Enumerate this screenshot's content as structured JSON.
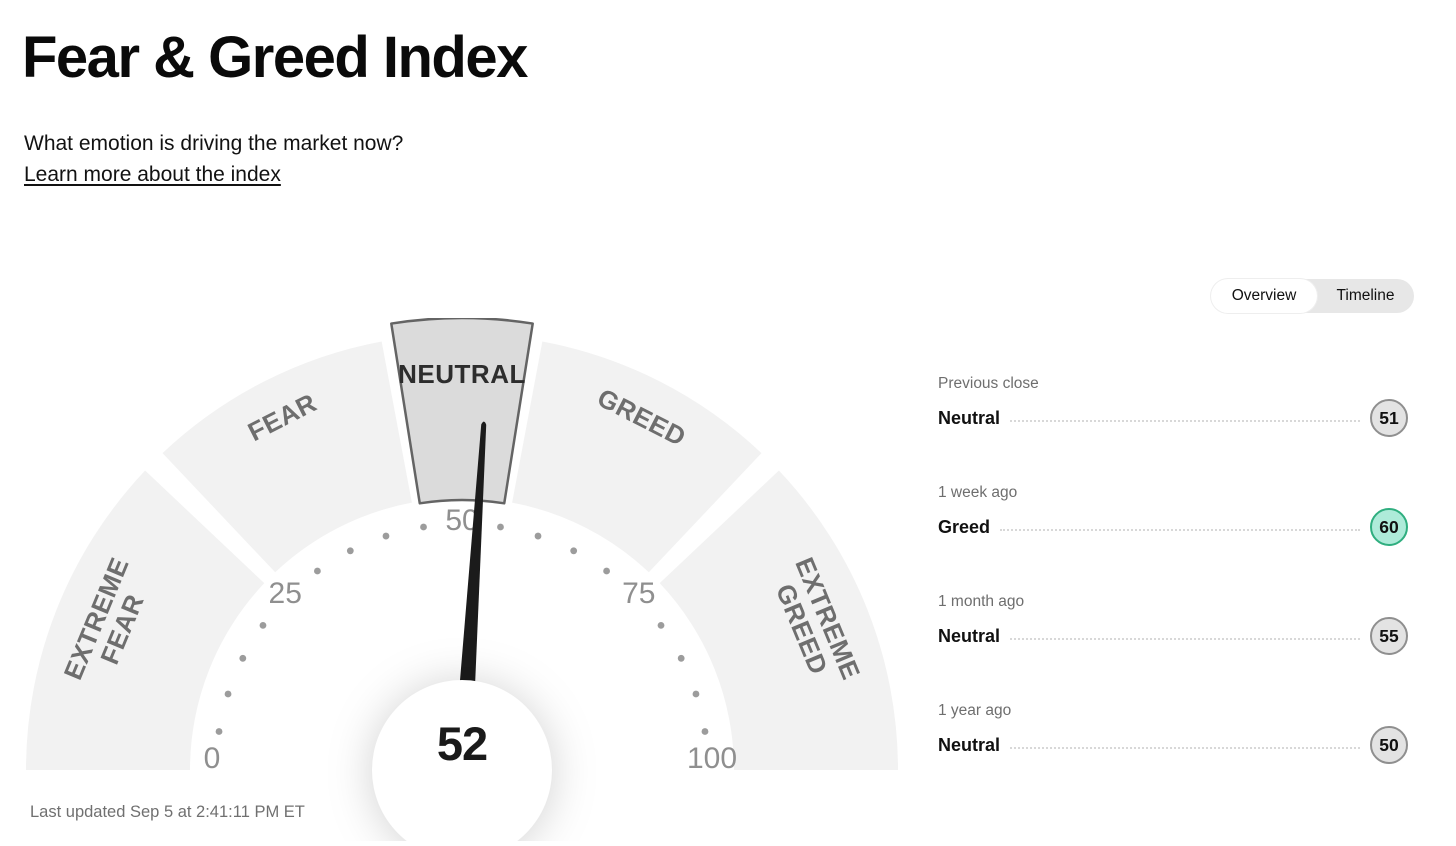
{
  "page": {
    "title": "Fear & Greed Index",
    "subtitle": "What emotion is driving the market now?",
    "learn_more": "Learn more about the index",
    "last_updated": "Last updated Sep 5 at 2:41:11 PM ET"
  },
  "tabs": [
    {
      "label": "Overview",
      "selected": true
    },
    {
      "label": "Timeline",
      "selected": false
    }
  ],
  "chart_data": {
    "type": "gauge",
    "title": "Fear & Greed Index",
    "value": 52,
    "value_mood": "Neutral",
    "min": 0,
    "max": 100,
    "axis_ticks": [
      0,
      25,
      50,
      75,
      100
    ],
    "minor_tick_step": 5,
    "segments": [
      {
        "label": "EXTREME FEAR",
        "lines": [
          "EXTREME",
          "FEAR"
        ],
        "from": 0,
        "to": 25,
        "active": false
      },
      {
        "label": "FEAR",
        "lines": [
          "FEAR"
        ],
        "from": 25,
        "to": 45,
        "active": false
      },
      {
        "label": "NEUTRAL",
        "lines": [
          "NEUTRAL"
        ],
        "from": 45,
        "to": 55,
        "active": true
      },
      {
        "label": "GREED",
        "lines": [
          "GREED"
        ],
        "from": 55,
        "to": 75,
        "active": false
      },
      {
        "label": "EXTREME GREED",
        "lines": [
          "EXTREME",
          "GREED"
        ],
        "from": 75,
        "to": 100,
        "active": false
      }
    ]
  },
  "history": [
    {
      "period": "Previous close",
      "label": "Neutral",
      "value": 51,
      "highlight": false
    },
    {
      "period": "1 week ago",
      "label": "Greed",
      "value": 60,
      "highlight": true
    },
    {
      "period": "1 month ago",
      "label": "Neutral",
      "value": 55,
      "highlight": false
    },
    {
      "period": "1 year ago",
      "label": "Neutral",
      "value": 50,
      "highlight": false
    }
  ],
  "colors": {
    "segment_fill": "#f2f2f2",
    "active_segment_fill": "#dbdbdb",
    "active_segment_stroke": "#646464",
    "segment_label": "#6e6e6e",
    "active_segment_label": "#2d2d2d",
    "axis_number": "#8f8f8f",
    "tick_dot": "#9c9c9c",
    "needle": "#1b1b1b",
    "badge_gray_bg": "#e3e3e3",
    "badge_gray_border": "#8f8f8f",
    "badge_green_bg": "#aeebd9",
    "badge_green_border": "#2fae7f"
  }
}
